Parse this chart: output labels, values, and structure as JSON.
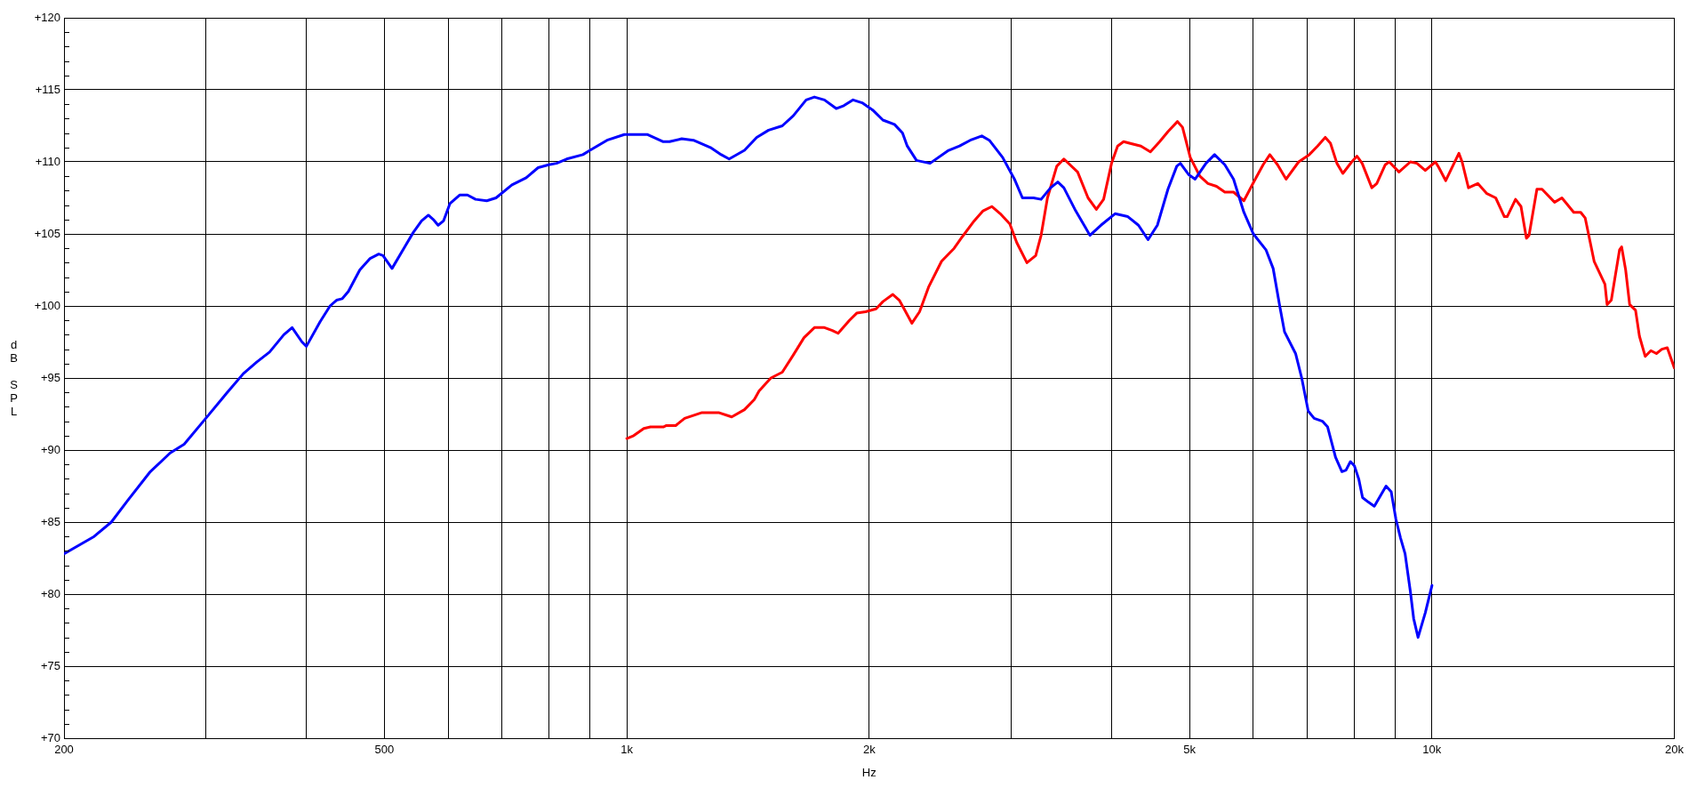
{
  "chart_data": {
    "type": "line",
    "xlabel": "Hz",
    "ylabel": "dB SPL",
    "log": "x",
    "xlim": [
      200,
      20000
    ],
    "ylim": [
      70,
      120
    ],
    "xticks": [
      200,
      {
        "value": 300,
        "label": null
      },
      {
        "value": 400,
        "label": null
      },
      500,
      {
        "value": 600,
        "label": null
      },
      {
        "value": 700,
        "label": null
      },
      {
        "value": 800,
        "label": null
      },
      {
        "value": 900,
        "label": null
      },
      {
        "value": 1000,
        "label": "1k"
      },
      {
        "value": 2000,
        "label": "2k"
      },
      {
        "value": 3000,
        "label": null
      },
      {
        "value": 4000,
        "label": null
      },
      {
        "value": 5000,
        "label": "5k"
      },
      {
        "value": 6000,
        "label": null
      },
      {
        "value": 7000,
        "label": null
      },
      {
        "value": 8000,
        "label": null
      },
      {
        "value": 9000,
        "label": null
      },
      {
        "value": 10000,
        "label": "10k"
      },
      {
        "value": 20000,
        "label": "20k"
      }
    ],
    "yticks": [
      {
        "value": 70,
        "label": "+70"
      },
      {
        "value": 71,
        "label": null
      },
      {
        "value": 72,
        "label": null
      },
      {
        "value": 73,
        "label": null
      },
      {
        "value": 74,
        "label": null
      },
      {
        "value": 75,
        "label": "+75"
      },
      {
        "value": 76,
        "label": null
      },
      {
        "value": 77,
        "label": null
      },
      {
        "value": 78,
        "label": null
      },
      {
        "value": 79,
        "label": null
      },
      {
        "value": 80,
        "label": "+80"
      },
      {
        "value": 81,
        "label": null
      },
      {
        "value": 82,
        "label": null
      },
      {
        "value": 83,
        "label": null
      },
      {
        "value": 84,
        "label": null
      },
      {
        "value": 85,
        "label": "+85"
      },
      {
        "value": 86,
        "label": null
      },
      {
        "value": 87,
        "label": null
      },
      {
        "value": 88,
        "label": null
      },
      {
        "value": 89,
        "label": null
      },
      {
        "value": 90,
        "label": "+90"
      },
      {
        "value": 91,
        "label": null
      },
      {
        "value": 92,
        "label": null
      },
      {
        "value": 93,
        "label": null
      },
      {
        "value": 94,
        "label": null
      },
      {
        "value": 95,
        "label": "+95"
      },
      {
        "value": 96,
        "label": null
      },
      {
        "value": 97,
        "label": null
      },
      {
        "value": 98,
        "label": null
      },
      {
        "value": 99,
        "label": null
      },
      {
        "value": 100,
        "label": "+100"
      },
      {
        "value": 101,
        "label": null
      },
      {
        "value": 102,
        "label": null
      },
      {
        "value": 103,
        "label": null
      },
      {
        "value": 104,
        "label": null
      },
      {
        "value": 105,
        "label": "+105"
      },
      {
        "value": 106,
        "label": null
      },
      {
        "value": 107,
        "label": null
      },
      {
        "value": 108,
        "label": null
      },
      {
        "value": 109,
        "label": null
      },
      {
        "value": 110,
        "label": "+110"
      },
      {
        "value": 111,
        "label": null
      },
      {
        "value": 112,
        "label": null
      },
      {
        "value": 113,
        "label": null
      },
      {
        "value": 114,
        "label": null
      },
      {
        "value": 115,
        "label": "+115"
      },
      {
        "value": 116,
        "label": null
      },
      {
        "value": 117,
        "label": null
      },
      {
        "value": 118,
        "label": null
      },
      {
        "value": 119,
        "label": null
      },
      {
        "value": 120,
        "label": "+120"
      }
    ],
    "grid": true,
    "marker": "none",
    "line_style": "solid",
    "series": [
      {
        "color": "#0000ff",
        "x": [
          200,
          218,
          229,
          240,
          256,
          271,
          282,
          300,
          319,
          334,
          347,
          360,
          375,
          384,
          395,
          400,
          416,
          428,
          436,
          443,
          451,
          466,
          480,
          492,
          498,
          511,
          530,
          543,
          556,
          567,
          575,
          583,
          592,
          603,
          620,
          634,
          649,
          670,
          688,
          720,
          750,
          776,
          800,
          818,
          842,
          882,
          900,
          945,
          993,
          1060,
          1110,
          1130,
          1170,
          1210,
          1270,
          1310,
          1340,
          1400,
          1450,
          1500,
          1560,
          1610,
          1670,
          1710,
          1760,
          1820,
          1860,
          1910,
          1960,
          2020,
          2080,
          2150,
          2200,
          2230,
          2290,
          2380,
          2510,
          2590,
          2670,
          2760,
          2820,
          2930,
          3030,
          3100,
          3200,
          3270,
          3360,
          3430,
          3490,
          3610,
          3690,
          3760,
          3880,
          4040,
          4190,
          4320,
          4440,
          4560,
          4700,
          4820,
          4870,
          4990,
          5080,
          5240,
          5370,
          5530,
          5670,
          5840,
          6000,
          6220,
          6350,
          6470,
          6560,
          6770,
          6890,
          7020,
          7140,
          7310,
          7420,
          7590,
          7730,
          7820,
          7920,
          8010,
          8110,
          8200,
          8330,
          8480,
          8770,
          8900,
          9020,
          9140,
          9260,
          9400,
          9490,
          9610,
          9810,
          10000
        ],
        "values": [
          82.8,
          84.0,
          85.0,
          86.5,
          88.5,
          89.8,
          90.4,
          92.2,
          94.0,
          95.3,
          96.1,
          96.8,
          98.0,
          98.5,
          97.5,
          97.2,
          98.9,
          100.0,
          100.4,
          100.5,
          101.0,
          102.5,
          103.3,
          103.6,
          103.5,
          102.6,
          104.1,
          105.1,
          105.9,
          106.3,
          106.0,
          105.6,
          105.9,
          107.1,
          107.7,
          107.7,
          107.4,
          107.3,
          107.5,
          108.4,
          108.9,
          109.6,
          109.8,
          109.9,
          110.2,
          110.5,
          110.8,
          111.5,
          111.9,
          111.9,
          111.4,
          111.4,
          111.6,
          111.5,
          111.0,
          110.5,
          110.2,
          110.8,
          111.7,
          112.2,
          112.5,
          113.2,
          114.3,
          114.5,
          114.3,
          113.7,
          113.9,
          114.3,
          114.1,
          113.6,
          112.9,
          112.6,
          112.0,
          111.1,
          110.1,
          109.9,
          110.8,
          111.1,
          111.5,
          111.8,
          111.5,
          110.3,
          108.8,
          107.5,
          107.5,
          107.4,
          108.2,
          108.6,
          108.2,
          106.6,
          105.7,
          104.9,
          105.6,
          106.4,
          106.2,
          105.6,
          104.6,
          105.6,
          108.1,
          109.7,
          109.9,
          109.1,
          108.8,
          109.9,
          110.5,
          109.8,
          108.8,
          106.5,
          105.0,
          103.9,
          102.6,
          100.0,
          98.2,
          96.7,
          95.0,
          92.7,
          92.2,
          92.0,
          91.6,
          89.5,
          88.5,
          88.6,
          89.2,
          88.9,
          88.0,
          86.7,
          86.4,
          86.1,
          87.5,
          87.1,
          85.2,
          83.9,
          82.8,
          80.2,
          78.3,
          77.0,
          78.7,
          80.6
        ]
      },
      {
        "color": "#ff0000",
        "x": [
          1000,
          1020,
          1050,
          1070,
          1110,
          1120,
          1150,
          1180,
          1240,
          1300,
          1350,
          1400,
          1440,
          1460,
          1510,
          1560,
          1610,
          1660,
          1710,
          1760,
          1800,
          1830,
          1890,
          1930,
          1980,
          2040,
          2080,
          2140,
          2180,
          2210,
          2260,
          2310,
          2370,
          2460,
          2550,
          2610,
          2700,
          2770,
          2840,
          2910,
          2990,
          3050,
          3140,
          3220,
          3270,
          3330,
          3420,
          3490,
          3630,
          3740,
          3830,
          3910,
          4000,
          4070,
          4140,
          4350,
          4470,
          4590,
          4700,
          4830,
          4900,
          5010,
          5150,
          5270,
          5400,
          5530,
          5670,
          5840,
          6020,
          6170,
          6290,
          6430,
          6590,
          6830,
          7040,
          7210,
          7370,
          7480,
          7620,
          7750,
          7950,
          8070,
          8190,
          8420,
          8540,
          8750,
          8850,
          9100,
          9400,
          9580,
          9810,
          10100,
          10200,
          10400,
          10800,
          10900,
          11100,
          11400,
          11700,
          12000,
          12300,
          12400,
          12700,
          12900,
          13100,
          13200,
          13500,
          13700,
          14200,
          14500,
          15000,
          15300,
          15500,
          15900,
          16400,
          16500,
          16700,
          17100,
          17200,
          17400,
          17600,
          17900,
          18100,
          18400,
          18700,
          19000,
          19300,
          19600,
          20000
        ],
        "values": [
          90.8,
          91.0,
          91.5,
          91.6,
          91.6,
          91.7,
          91.7,
          92.2,
          92.6,
          92.6,
          92.3,
          92.8,
          93.5,
          94.1,
          95.0,
          95.4,
          96.6,
          97.8,
          98.5,
          98.5,
          98.3,
          98.1,
          99.0,
          99.5,
          99.6,
          99.8,
          100.3,
          100.8,
          100.4,
          99.8,
          98.8,
          99.6,
          101.3,
          103.1,
          104.0,
          104.8,
          105.9,
          106.6,
          106.9,
          106.4,
          105.7,
          104.4,
          103.0,
          103.5,
          104.9,
          107.5,
          109.7,
          110.2,
          109.3,
          107.5,
          106.7,
          107.4,
          109.9,
          111.1,
          111.4,
          111.1,
          110.7,
          111.4,
          112.1,
          112.8,
          112.4,
          110.3,
          109.0,
          108.5,
          108.3,
          107.9,
          107.9,
          107.3,
          108.7,
          109.8,
          110.5,
          109.8,
          108.8,
          110.0,
          110.5,
          111.1,
          111.7,
          111.3,
          109.9,
          109.2,
          110.0,
          110.4,
          109.9,
          108.2,
          108.5,
          109.8,
          110.0,
          109.3,
          110.0,
          109.9,
          109.4,
          110.0,
          109.6,
          108.7,
          110.6,
          110.0,
          108.2,
          108.5,
          107.8,
          107.5,
          106.2,
          106.2,
          107.4,
          106.9,
          104.7,
          104.9,
          108.1,
          108.1,
          107.2,
          107.5,
          106.5,
          106.5,
          106.1,
          103.1,
          101.5,
          100.1,
          100.4,
          103.9,
          104.1,
          102.5,
          100.1,
          99.7,
          97.9,
          96.5,
          96.9,
          96.7,
          97.0,
          97.1,
          95.7
        ]
      }
    ]
  }
}
